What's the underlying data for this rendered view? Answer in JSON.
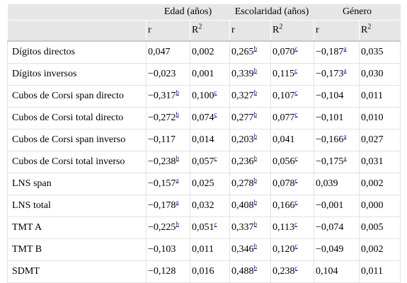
{
  "header": {
    "groups": [
      "Edad (años)",
      "Escolaridad (años)",
      "Género"
    ],
    "sub": [
      {
        "main": "r",
        "sup": ""
      },
      {
        "main": "R",
        "sup": "2"
      },
      {
        "main": "r",
        "sup": ""
      },
      {
        "main": "R",
        "sup": "2"
      },
      {
        "main": "r",
        "sup": ""
      },
      {
        "main": "R",
        "sup": "2"
      }
    ]
  },
  "rows": [
    {
      "label": "Dígitos directos",
      "cells": [
        {
          "v": "0,047",
          "n": ""
        },
        {
          "v": "0,002",
          "n": ""
        },
        {
          "v": "0,265",
          "n": "b"
        },
        {
          "v": "0,070",
          "n": "c"
        },
        {
          "v": "−0,187",
          "n": "a"
        },
        {
          "v": "0,035",
          "n": ""
        }
      ]
    },
    {
      "label": "Dígitos inversos",
      "cells": [
        {
          "v": "−0,023",
          "n": ""
        },
        {
          "v": "0,001",
          "n": ""
        },
        {
          "v": "0,339",
          "n": "b"
        },
        {
          "v": "0,115",
          "n": "c"
        },
        {
          "v": "−0,173",
          "n": "a"
        },
        {
          "v": "0,030",
          "n": ""
        }
      ]
    },
    {
      "label": "Cubos de Corsi span directo",
      "cells": [
        {
          "v": "−0,317",
          "n": "b"
        },
        {
          "v": "0,100",
          "n": "c"
        },
        {
          "v": "0,327",
          "n": "b"
        },
        {
          "v": "0,107",
          "n": "c"
        },
        {
          "v": "−0,104",
          "n": ""
        },
        {
          "v": "0,011",
          "n": ""
        }
      ]
    },
    {
      "label": "Cubos de Corsi total directo",
      "cells": [
        {
          "v": "−0,272",
          "n": "b"
        },
        {
          "v": "0,074",
          "n": "c"
        },
        {
          "v": "0,277",
          "n": "b"
        },
        {
          "v": "0,077",
          "n": "c"
        },
        {
          "v": "−0,101",
          "n": ""
        },
        {
          "v": "0,010",
          "n": ""
        }
      ]
    },
    {
      "label": "Cubos de Corsi span inverso",
      "cells": [
        {
          "v": "−0,117",
          "n": ""
        },
        {
          "v": "0,014",
          "n": ""
        },
        {
          "v": "0,203",
          "n": "b"
        },
        {
          "v": "0,041",
          "n": ""
        },
        {
          "v": "−0,166",
          "n": "a"
        },
        {
          "v": "0,027",
          "n": ""
        }
      ]
    },
    {
      "label": "Cubos de Corsi total inverso",
      "cells": [
        {
          "v": "−0,238",
          "n": "b"
        },
        {
          "v": "0,057",
          "n": "c"
        },
        {
          "v": "0,236",
          "n": "b"
        },
        {
          "v": "0,056",
          "n": "c"
        },
        {
          "v": "−0,175",
          "n": "a"
        },
        {
          "v": "0,031",
          "n": ""
        }
      ]
    },
    {
      "label": "LNS span",
      "cells": [
        {
          "v": "−0,157",
          "n": "a"
        },
        {
          "v": "0,025",
          "n": ""
        },
        {
          "v": "0,278",
          "n": "b"
        },
        {
          "v": "0,078",
          "n": "c"
        },
        {
          "v": "0,039",
          "n": ""
        },
        {
          "v": "0,002",
          "n": ""
        }
      ]
    },
    {
      "label": "LNS total",
      "cells": [
        {
          "v": "−0,178",
          "n": "a"
        },
        {
          "v": "0,032",
          "n": ""
        },
        {
          "v": "0,408",
          "n": "b"
        },
        {
          "v": "0,166",
          "n": "c"
        },
        {
          "v": "−0,001",
          "n": ""
        },
        {
          "v": "0,000",
          "n": ""
        }
      ]
    },
    {
      "label": "TMT A",
      "cells": [
        {
          "v": "−0,225",
          "n": "b"
        },
        {
          "v": "0,051",
          "n": "c"
        },
        {
          "v": "0,337",
          "n": "b"
        },
        {
          "v": "0,113",
          "n": "c"
        },
        {
          "v": "−0,074",
          "n": ""
        },
        {
          "v": "0,005",
          "n": ""
        }
      ]
    },
    {
      "label": "TMT B",
      "cells": [
        {
          "v": "−0,103",
          "n": ""
        },
        {
          "v": "0,011",
          "n": ""
        },
        {
          "v": "0,346",
          "n": "b"
        },
        {
          "v": "0,120",
          "n": "c"
        },
        {
          "v": "−0,049",
          "n": ""
        },
        {
          "v": "0,002",
          "n": ""
        }
      ]
    },
    {
      "label": "SDMT",
      "cells": [
        {
          "v": "−0,128",
          "n": ""
        },
        {
          "v": "0,016",
          "n": ""
        },
        {
          "v": "0,488",
          "n": "b"
        },
        {
          "v": "0,238",
          "n": "c"
        },
        {
          "v": "0,104",
          "n": ""
        },
        {
          "v": "0,011",
          "n": ""
        }
      ]
    }
  ]
}
